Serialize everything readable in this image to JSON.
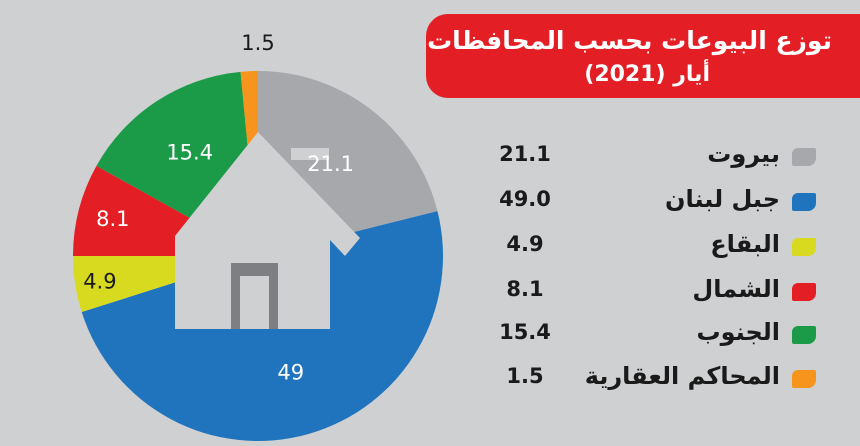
{
  "chart_data": {
    "type": "pie",
    "title": "توزع البيوعات بحسب المحافظات",
    "subtitle": "أيار (2021)",
    "categories": [
      "بيروت",
      "جبل لبنان",
      "البقاع",
      "الشمال",
      "الجنوب",
      "المحاكم العقارية"
    ],
    "values": [
      21.1,
      49.0,
      4.9,
      8.1,
      15.4,
      1.5
    ],
    "slice_labels": [
      "21.1",
      "49",
      "4.9",
      "8.1",
      "15.4",
      "1.5"
    ],
    "legend_values": [
      "21.1",
      "49.0",
      "4.9",
      "8.1",
      "15.4",
      "1.5"
    ],
    "colors": [
      "#a6a8ab",
      "#1f74bd",
      "#d8da1f",
      "#e31e24",
      "#1b9a48",
      "#f7941d"
    ],
    "center_icon": "house-icon",
    "legend_position": "right"
  },
  "colors": {
    "background": "#cfd0d2",
    "title_background": "#e31e24",
    "title_text": "#ffffff"
  }
}
